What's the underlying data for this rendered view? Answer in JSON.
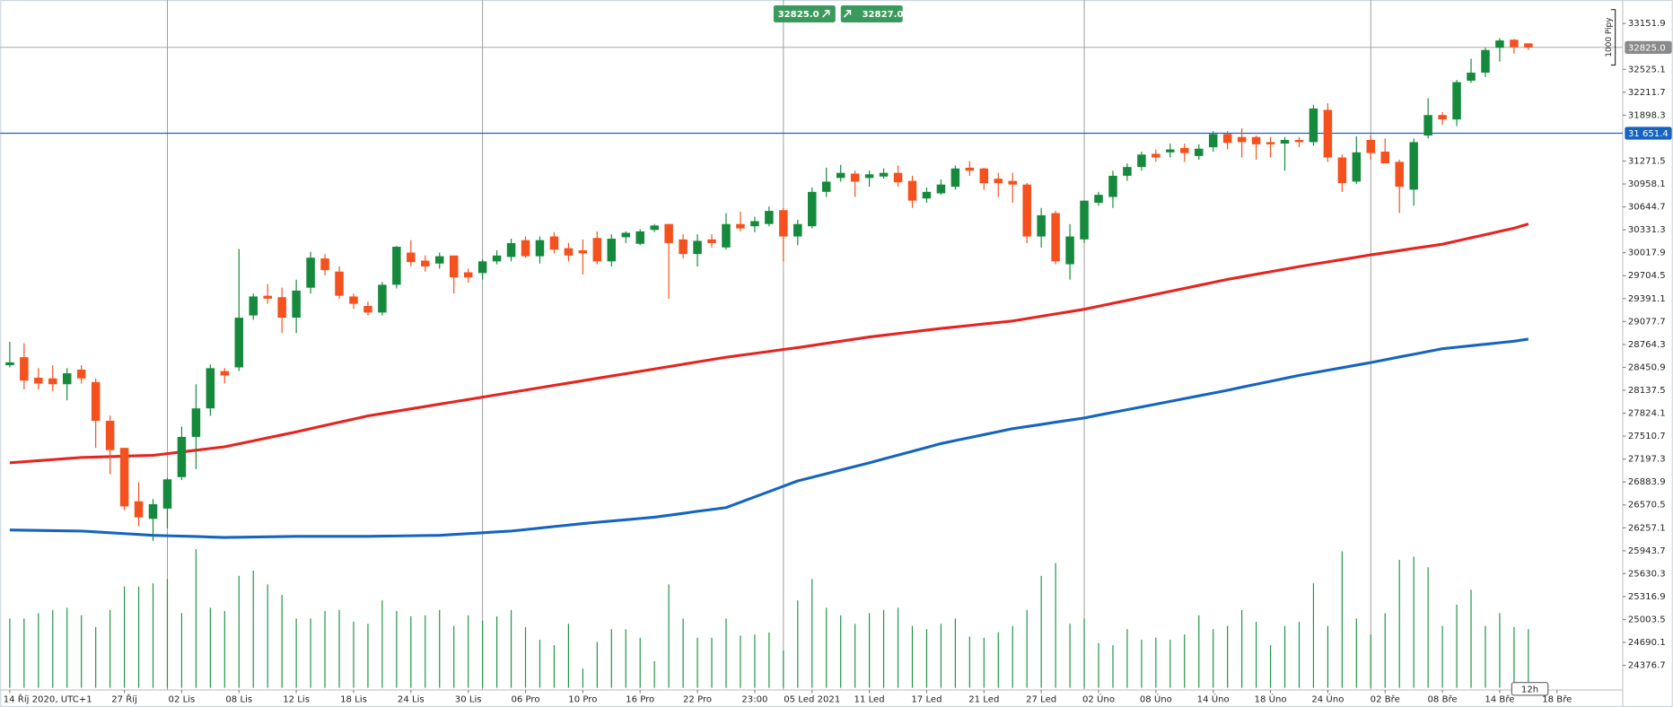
{
  "chart_data": {
    "type": "candlestick",
    "quote": {
      "bid": "32825.0",
      "ask": "32827.0"
    },
    "scale_label": "1000 Pipy",
    "interval": "12h",
    "categories": [
      "14 Říj 2020, UTC+1",
      null,
      null,
      null,
      null,
      null,
      null,
      null,
      "27 Říj",
      null,
      null,
      null,
      "02 Lis",
      null,
      null,
      null,
      "08 Lis",
      null,
      null,
      null,
      "12 Lis",
      null,
      null,
      null,
      "18 Lis",
      null,
      null,
      null,
      "24 Lis",
      null,
      null,
      null,
      "30 Lis",
      null,
      null,
      null,
      "06 Pro",
      null,
      null,
      null,
      "10 Pro",
      null,
      null,
      null,
      "16 Pro",
      null,
      null,
      null,
      "22 Pro",
      null,
      null,
      null,
      "23:00",
      null,
      null,
      null,
      "05 Led 2021",
      null,
      null,
      null,
      "11 Led",
      null,
      null,
      null,
      "17 Led",
      null,
      null,
      null,
      "21 Led",
      null,
      null,
      null,
      "27 Led",
      null,
      null,
      null,
      "02 Úno",
      null,
      null,
      null,
      "08 Úno",
      null,
      null,
      null,
      "14 Úno",
      null,
      null,
      null,
      "18 Úno",
      null,
      null,
      null,
      "24 Úno",
      null,
      null,
      null,
      "02 Bře",
      null,
      null,
      null,
      "08 Bře",
      null,
      null,
      null,
      "14 Bře",
      null,
      null,
      null,
      "18 Bře"
    ],
    "open": [
      28480,
      28590,
      28310,
      28300,
      28220,
      28420,
      28250,
      27720,
      27350,
      26620,
      26380,
      26520,
      26950,
      27500,
      27890,
      28400,
      28450,
      29160,
      29430,
      29410,
      29130,
      29540,
      29940,
      29760,
      29420,
      29290,
      29200,
      29580,
      30020,
      29910,
      29870,
      29980,
      29750,
      29740,
      29900,
      29960,
      30190,
      29970,
      30240,
      30080,
      30050,
      30220,
      29900,
      30230,
      30140,
      30330,
      30410,
      30200,
      30000,
      30200,
      30090,
      30410,
      30380,
      30410,
      30600,
      30240,
      30380,
      30850,
      31040,
      31100,
      31040,
      31060,
      31110,
      31000,
      30760,
      30830,
      30920,
      31180,
      31170,
      31030,
      31000,
      30950,
      30240,
      30560,
      29860,
      30200,
      30700,
      30780,
      31070,
      31190,
      31370,
      31390,
      31450,
      31340,
      31460,
      31640,
      31600,
      31600,
      31530,
      31510,
      31560,
      31530,
      31970,
      31320,
      30990,
      31560,
      31400,
      31260,
      30880,
      31620,
      31900,
      31840,
      32370,
      32480,
      32820,
      32930,
      32880,
      null,
      null
    ],
    "high": [
      28800,
      28780,
      28440,
      28480,
      28440,
      28480,
      28300,
      27790,
      27350,
      26880,
      26650,
      26940,
      27640,
      28220,
      28490,
      28440,
      30070,
      29460,
      29590,
      29540,
      29650,
      30030,
      30000,
      29830,
      29460,
      29350,
      29620,
      30110,
      30190,
      29980,
      30020,
      29980,
      29800,
      29930,
      30050,
      30210,
      30240,
      30240,
      30300,
      30150,
      30200,
      30310,
      30270,
      30310,
      30340,
      30410,
      30410,
      30270,
      30270,
      30270,
      30560,
      30580,
      30510,
      30650,
      30630,
      30470,
      30910,
      31180,
      31220,
      31140,
      31140,
      31170,
      31210,
      31070,
      30910,
      31020,
      31210,
      31270,
      31180,
      31110,
      31110,
      30970,
      30630,
      30590,
      30410,
      30730,
      30850,
      31140,
      31240,
      31400,
      31430,
      31510,
      31510,
      31500,
      31680,
      31680,
      31720,
      31620,
      31600,
      31600,
      31600,
      32040,
      32060,
      31360,
      31610,
      31620,
      31580,
      31290,
      31580,
      32130,
      31940,
      32380,
      32670,
      32820,
      32950,
      32940,
      32880,
      null,
      null
    ],
    "low": [
      28450,
      28150,
      28150,
      28120,
      28000,
      28230,
      27350,
      26990,
      26500,
      26280,
      26080,
      26250,
      26910,
      27060,
      27790,
      28230,
      28400,
      29100,
      29320,
      28920,
      28920,
      29460,
      29710,
      29390,
      29250,
      29160,
      29160,
      29530,
      29830,
      29760,
      29800,
      29460,
      29610,
      29650,
      29860,
      29900,
      29950,
      29870,
      30010,
      29900,
      29720,
      29860,
      29830,
      30150,
      30120,
      30300,
      29390,
      29940,
      29830,
      30090,
      30060,
      30310,
      30300,
      30380,
      29900,
      30120,
      30350,
      30780,
      30990,
      30780,
      30920,
      31030,
      30920,
      30630,
      30700,
      30810,
      30880,
      31070,
      30880,
      30780,
      30700,
      30150,
      30090,
      29860,
      29650,
      30150,
      30660,
      30630,
      31000,
      31140,
      31260,
      31320,
      31260,
      31290,
      31400,
      31430,
      31320,
      31290,
      31320,
      31140,
      31460,
      31480,
      31260,
      30850,
      30960,
      31290,
      31240,
      30560,
      30660,
      31580,
      31770,
      31750,
      32340,
      32420,
      32630,
      32740,
      32790,
      null,
      null
    ],
    "close": [
      28520,
      28270,
      28230,
      28220,
      28370,
      28300,
      27720,
      27320,
      26550,
      26400,
      26580,
      26920,
      27500,
      27890,
      28440,
      28340,
      29130,
      29420,
      29390,
      29130,
      29500,
      29950,
      29780,
      29430,
      29320,
      29200,
      29580,
      30100,
      29890,
      29830,
      29970,
      29680,
      29680,
      29900,
      29980,
      30150,
      29970,
      30190,
      30060,
      29980,
      30010,
      29900,
      30210,
      30290,
      30310,
      30390,
      30150,
      30000,
      30180,
      30150,
      30410,
      30350,
      30450,
      30590,
      30240,
      30410,
      30850,
      30990,
      31110,
      30990,
      31090,
      31110,
      30980,
      30730,
      30850,
      30950,
      31170,
      31140,
      30970,
      30970,
      30950,
      30240,
      30530,
      29900,
      30240,
      30730,
      30810,
      31070,
      31190,
      31360,
      31320,
      31430,
      31380,
      31440,
      31640,
      31520,
      31530,
      31500,
      31500,
      31560,
      31530,
      31990,
      31320,
      30970,
      31390,
      31380,
      31240,
      30920,
      31530,
      31900,
      31840,
      32350,
      32480,
      32790,
      32920,
      32830,
      32825,
      null,
      null
    ],
    "up_color": "#168a3c",
    "down_color": "#f4511e",
    "ma_lines": [
      {
        "color": "#e8231f",
        "values": [
          27146,
          27161,
          27175,
          27190,
          27204,
          27219,
          27225,
          27231,
          27236,
          27242,
          27248,
          27271,
          27295,
          27318,
          27342,
          27365,
          27406,
          27447,
          27487,
          27528,
          27569,
          27613,
          27657,
          27700,
          27744,
          27788,
          27820,
          27852,
          27884,
          27916,
          27948,
          27980,
          28012,
          28044,
          28076,
          28108,
          28140,
          28172,
          28205,
          28237,
          28269,
          28301,
          28333,
          28365,
          28397,
          28429,
          28461,
          28493,
          28525,
          28557,
          28589,
          28615,
          28642,
          28668,
          28695,
          28721,
          28750,
          28779,
          28808,
          28837,
          28866,
          28889,
          28913,
          28936,
          28960,
          28983,
          29003,
          29024,
          29044,
          29065,
          29085,
          29117,
          29149,
          29181,
          29213,
          29245,
          29286,
          29327,
          29367,
          29408,
          29449,
          29490,
          29531,
          29572,
          29613,
          29654,
          29689,
          29724,
          29758,
          29793,
          29828,
          29860,
          29892,
          29925,
          29957,
          29989,
          30018,
          30047,
          30077,
          30106,
          30135,
          30179,
          30222,
          30266,
          30309,
          30353,
          30412,
          null,
          null
        ]
      },
      {
        "color": "#1565c0",
        "values": [
          26228,
          26225,
          26222,
          26219,
          26216,
          26213,
          26201,
          26190,
          26178,
          26167,
          26155,
          26149,
          26143,
          26138,
          26132,
          26126,
          26129,
          26132,
          26134,
          26137,
          26140,
          26140,
          26140,
          26140,
          26140,
          26140,
          26143,
          26146,
          26149,
          26152,
          26155,
          26167,
          26178,
          26190,
          26201,
          26213,
          26233,
          26254,
          26274,
          26295,
          26315,
          26333,
          26350,
          26368,
          26385,
          26403,
          26429,
          26455,
          26482,
          26508,
          26534,
          26607,
          26680,
          26752,
          26825,
          26898,
          26948,
          26997,
          27047,
          27096,
          27146,
          27199,
          27251,
          27304,
          27356,
          27409,
          27450,
          27490,
          27531,
          27572,
          27613,
          27642,
          27671,
          27701,
          27730,
          27759,
          27797,
          27835,
          27872,
          27910,
          27948,
          27986,
          28024,
          28062,
          28100,
          28138,
          28179,
          28220,
          28260,
          28301,
          28342,
          28377,
          28412,
          28447,
          28482,
          28517,
          28555,
          28593,
          28630,
          28668,
          28706,
          28726,
          28747,
          28767,
          28788,
          28808,
          28837,
          null,
          null
        ]
      }
    ],
    "volume": {
      "color": "#1e9448",
      "values": [
        65,
        65,
        70,
        73,
        75,
        68,
        57,
        73,
        95,
        95,
        98,
        102,
        70,
        130,
        75,
        72,
        105,
        110,
        97,
        87,
        65,
        65,
        72,
        73,
        62,
        60,
        82,
        72,
        67,
        68,
        73,
        58,
        68,
        63,
        67,
        73,
        57,
        45,
        40,
        60,
        18,
        43,
        55,
        55,
        47,
        25,
        97,
        65,
        47,
        47,
        65,
        49,
        50,
        52,
        35,
        82,
        102,
        75,
        68,
        60,
        70,
        73,
        75,
        58,
        55,
        60,
        65,
        48,
        47,
        52,
        58,
        73,
        105,
        117,
        60,
        65,
        42,
        40,
        55,
        45,
        47,
        45,
        50,
        68,
        55,
        58,
        73,
        62,
        40,
        58,
        62,
        98,
        58,
        128,
        65,
        50,
        70,
        120,
        123,
        113,
        58,
        78,
        92,
        58,
        70,
        57,
        55,
        null,
        null
      ]
    },
    "ylim": [
      24070,
      33473
    ],
    "yticks": [
      33151.9,
      32525.1,
      32211.7,
      31898.3,
      31271.5,
      30958.1,
      30644.7,
      30331.3,
      30017.9,
      29704.5,
      29391.1,
      29077.7,
      28764.3,
      28450.9,
      28137.5,
      27824.1,
      27510.7,
      27197.3,
      26883.9,
      26570.5,
      26257.1,
      25943.7,
      25630.3,
      25316.9,
      25003.5,
      24690.1,
      24376.7
    ],
    "hline": {
      "value": 31651.4,
      "label": "31 651.4",
      "color": "#1565c0"
    },
    "last_price": {
      "value": 32825,
      "label": "32825.0",
      "color": "#8a8a8a"
    }
  }
}
